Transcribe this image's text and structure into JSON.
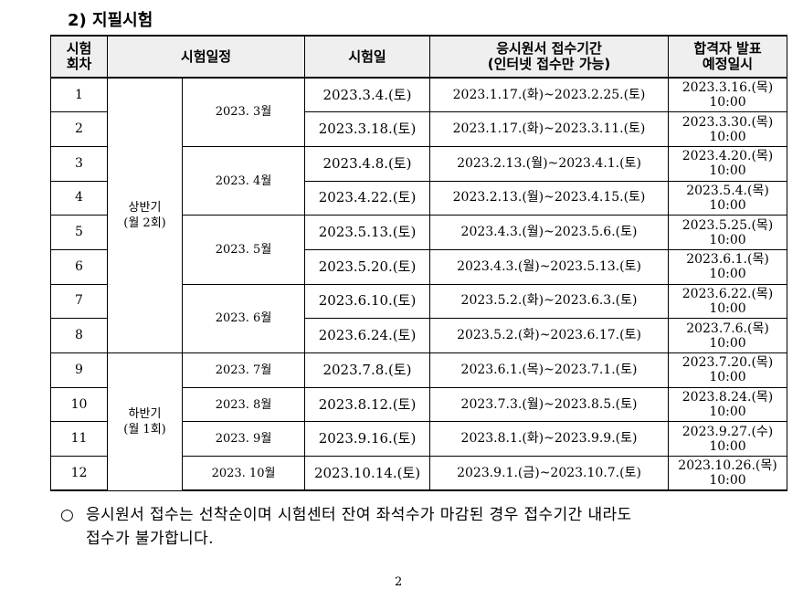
{
  "section_title": "2) 지필시험",
  "headers": {
    "round": "시험\n회차",
    "schedule": "시험일정",
    "exam_date": "시험일",
    "apply_period": "응시원서 접수기간\n(인터넷 접수만 가능)",
    "announce": "합격자 발표\n예정일시"
  },
  "halves": [
    {
      "label": "상반기\n(월 2회)"
    },
    {
      "label": "하반기\n(월 1회)"
    }
  ],
  "months": [
    "2023. 3월",
    "2023. 4월",
    "2023. 5월",
    "2023. 6월",
    "2023. 7월",
    "2023. 8월",
    "2023. 9월",
    "2023. 10월"
  ],
  "rows": [
    {
      "round": "1",
      "exam_date": "2023.3.4.(토)",
      "period": "2023.1.17.(화)~2023.2.25.(토)",
      "announce": "2023.3.16.(목)\n10:00"
    },
    {
      "round": "2",
      "exam_date": "2023.3.18.(토)",
      "period": "2023.1.17.(화)~2023.3.11.(토)",
      "announce": "2023.3.30.(목)\n10:00"
    },
    {
      "round": "3",
      "exam_date": "2023.4.8.(토)",
      "period": "2023.2.13.(월)~2023.4.1.(토)",
      "announce": "2023.4.20.(목)\n10:00"
    },
    {
      "round": "4",
      "exam_date": "2023.4.22.(토)",
      "period": "2023.2.13.(월)~2023.4.15.(토)",
      "announce": "2023.5.4.(목)\n10:00"
    },
    {
      "round": "5",
      "exam_date": "2023.5.13.(토)",
      "period": "2023.4.3.(월)~2023.5.6.(토)",
      "announce": "2023.5.25.(목)\n10:00"
    },
    {
      "round": "6",
      "exam_date": "2023.5.20.(토)",
      "period": "2023.4.3.(월)~2023.5.13.(토)",
      "announce": "2023.6.1.(목)\n10:00"
    },
    {
      "round": "7",
      "exam_date": "2023.6.10.(토)",
      "period": "2023.5.2.(화)~2023.6.3.(토)",
      "announce": "2023.6.22.(목)\n10:00"
    },
    {
      "round": "8",
      "exam_date": "2023.6.24.(토)",
      "period": "2023.5.2.(화)~2023.6.17.(토)",
      "announce": "2023.7.6.(목)\n10:00"
    },
    {
      "round": "9",
      "exam_date": "2023.7.8.(토)",
      "period": "2023.6.1.(목)~2023.7.1.(토)",
      "announce": "2023.7.20.(목)\n10:00"
    },
    {
      "round": "10",
      "exam_date": "2023.8.12.(토)",
      "period": "2023.7.3.(월)~2023.8.5.(토)",
      "announce": "2023.8.24.(목)\n10:00"
    },
    {
      "round": "11",
      "exam_date": "2023.9.16.(토)",
      "period": "2023.8.1.(화)~2023.9.9.(토)",
      "announce": "2023.9.27.(수)\n10:00"
    },
    {
      "round": "12",
      "exam_date": "2023.10.14.(토)",
      "period": "2023.9.1.(금)~2023.10.7.(토)",
      "announce": "2023.10.26.(목)\n10:00"
    }
  ],
  "notice": {
    "bullet": "○",
    "line1": "응시원서 접수는 선착순이며 시험센터 잔여 좌석수가 마감된 경우 접수기간 내라도",
    "line2": "접수가 불가합니다."
  },
  "page_number": "2"
}
